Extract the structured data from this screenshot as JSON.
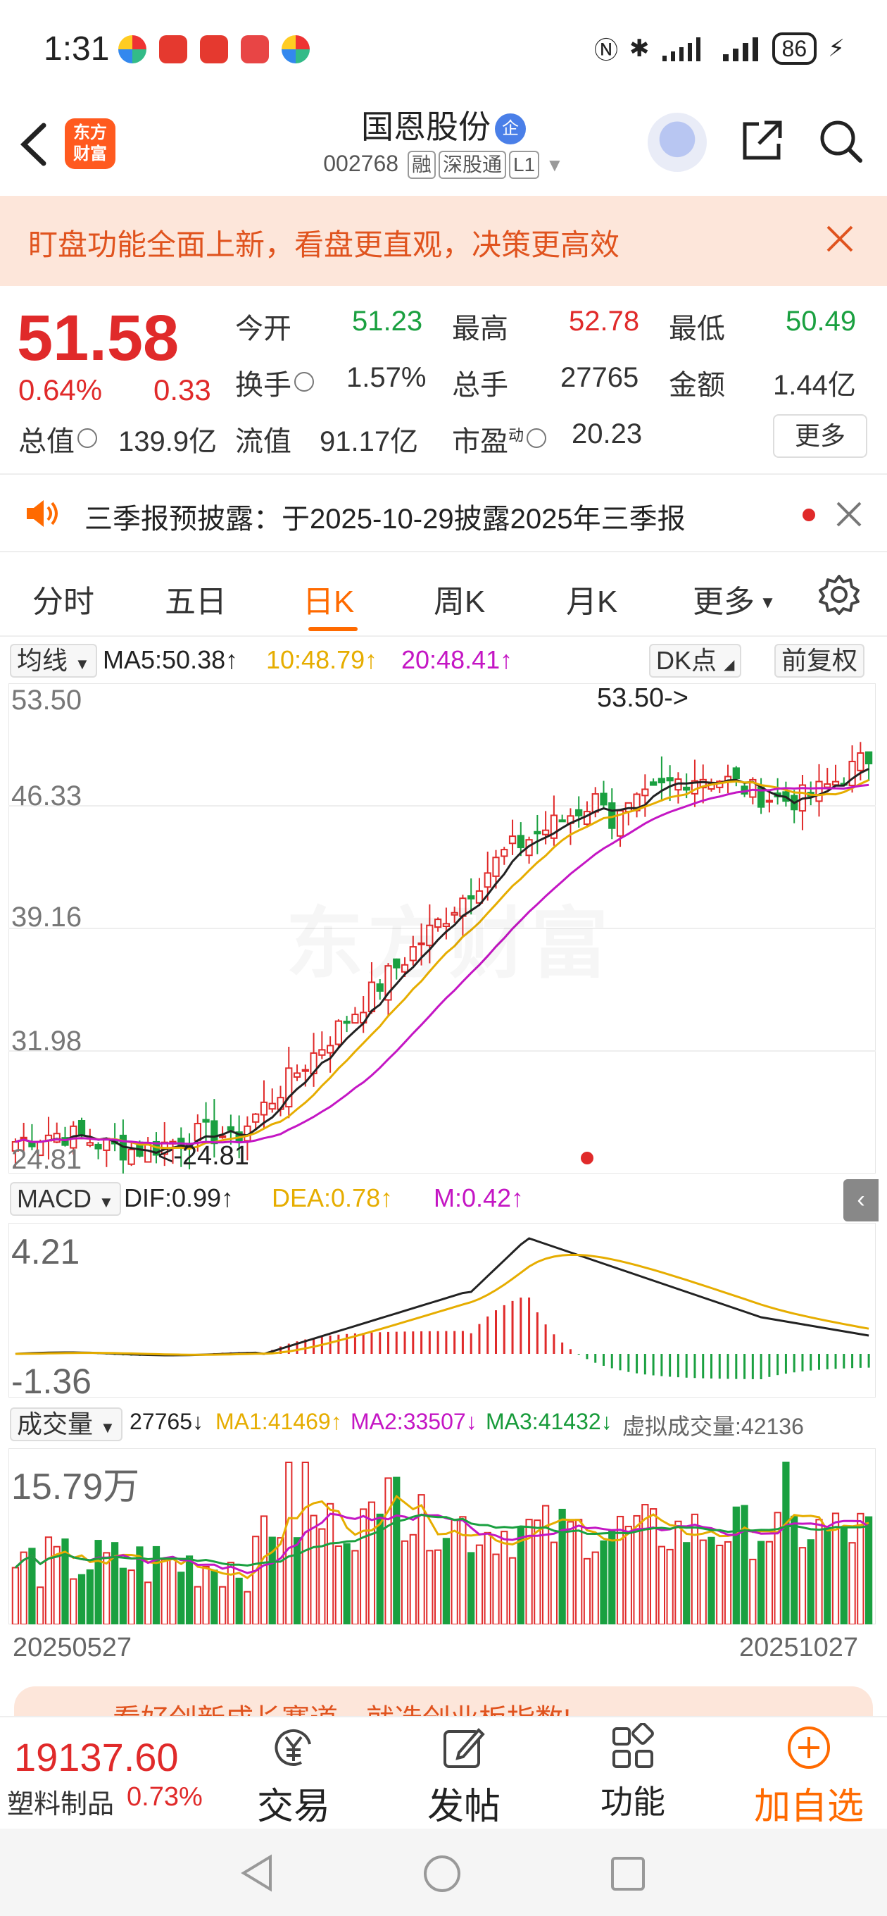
{
  "status_bar": {
    "time": "1:31",
    "battery": "86"
  },
  "header": {
    "stock_name": "国恩股份",
    "badge": "企",
    "code": "002768",
    "tags": [
      "融",
      "深股通",
      "L1"
    ]
  },
  "banner": {
    "text": "盯盘功能全面上新，看盘更直观，决策更高效"
  },
  "quote": {
    "price": "51.58",
    "change_pct": "0.64%",
    "change": "0.33",
    "open_label": "今开",
    "open": "51.23",
    "high_label": "最高",
    "high": "52.78",
    "low_label": "最低",
    "low": "50.49",
    "turnover_label": "换手",
    "turnover": "1.57%",
    "volume_label": "总手",
    "volume": "27765",
    "amount_label": "金额",
    "amount": "1.44亿",
    "mktcap_label": "总值",
    "mktcap": "139.9亿",
    "float_label": "流值",
    "float": "91.17亿",
    "pe_label": "市盈",
    "pe_sup": "动",
    "pe": "20.23",
    "more": "更多"
  },
  "notice": {
    "text": "三季报预披露：于2025-10-29披露2025年三季报"
  },
  "tabs": [
    "分时",
    "五日",
    "日K",
    "周K",
    "月K",
    "更多"
  ],
  "active_tab": 2,
  "ma_row": {
    "selector": "均线",
    "ma5": "MA5:50.38↑",
    "ma10": "10:48.79↑",
    "ma20": "20:48.41↑",
    "dk": "DK点",
    "adjust": "前复权"
  },
  "kline": {
    "y_ticks": [
      "53.50",
      "46.33",
      "39.16",
      "31.98",
      "24.81"
    ],
    "max_label": "53.50->",
    "min_label": "<-24.81",
    "watermark": "东方财富"
  },
  "macd_row": {
    "selector": "MACD",
    "dif": "DIF:0.99↑",
    "dea": "DEA:0.78↑",
    "m": "M:0.42↑",
    "y_top": "4.21",
    "y_bottom": "-1.36"
  },
  "vol_row": {
    "selector": "成交量",
    "vol": "27765↓",
    "ma1": "MA1:41469↑",
    "ma2": "MA2:33507↓",
    "ma3": "MA3:41432↓",
    "virtual": "虚拟成交量:42136",
    "y_top": "15.79万"
  },
  "dates": {
    "start": "20250527",
    "end": "20251027"
  },
  "promo": {
    "text": "看好创新成长赛道，就选创业板指数!"
  },
  "bottom_bar": {
    "index_value": "19137.60",
    "index_name": "塑料制品",
    "index_pct": "0.73%",
    "buttons": [
      "交易",
      "发帖",
      "功能",
      "加自选"
    ]
  },
  "colors": {
    "up": "#e02a2a",
    "down": "#1aa040",
    "accent": "#ff6a00",
    "ma5": "#222222",
    "ma10": "#e6ad00",
    "ma20": "#c416c4"
  }
}
